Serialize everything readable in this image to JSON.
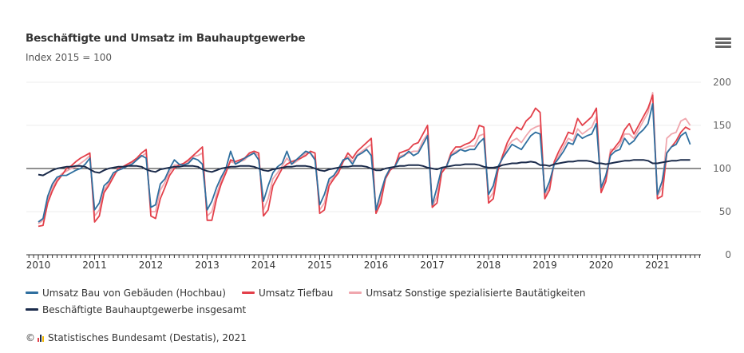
{
  "header": {
    "title": "Beschäftigte und Umsatz im Bauhauptgewerbe",
    "subtitle": "Index 2015 = 100",
    "menu_icon": "hamburger-menu-icon"
  },
  "legend": {
    "items": [
      {
        "label": "Umsatz Bau von Gebäuden (Hochbau)",
        "color": "#2f6f9f"
      },
      {
        "label": "Umsatz Tiefbau",
        "color": "#e3404a"
      },
      {
        "label": "Umsatz Sonstige spezialisierte Bautätigkeiten",
        "color": "#f0a7ae"
      },
      {
        "label": "Beschäftigte Bauhauptgewerbe insgesamt",
        "color": "#1b2b4b"
      }
    ]
  },
  "credits": {
    "copyright": "©",
    "text": "Statistisches Bundesamt (Destatis), 2021"
  },
  "chart_data": {
    "type": "line",
    "title": "Beschäftigte und Umsatz im Bauhauptgewerbe",
    "subtitle": "Index 2015 = 100",
    "xlabel": "",
    "ylabel": "",
    "x_start": "2010-01",
    "frequency": "monthly",
    "x_tick_labels": [
      "2010",
      "2011",
      "2012",
      "2013",
      "2014",
      "2015",
      "2016",
      "2017",
      "2018",
      "2019",
      "2020",
      "2021"
    ],
    "y_tick_labels": [
      "0",
      "50",
      "100",
      "150",
      "200"
    ],
    "ylim": [
      0,
      200
    ],
    "y_axis_side": "right",
    "reference_line": 100,
    "grid": true,
    "legend_position": "bottom-left",
    "series": [
      {
        "name": "Umsatz Bau von Gebäuden (Hochbau)",
        "color": "#2f6f9f",
        "values": [
          38,
          42,
          68,
          82,
          90,
          92,
          92,
          95,
          98,
          100,
          105,
          112,
          52,
          60,
          80,
          85,
          95,
          98,
          100,
          103,
          105,
          110,
          115,
          112,
          55,
          58,
          82,
          88,
          100,
          110,
          105,
          104,
          106,
          112,
          110,
          105,
          52,
          62,
          78,
          90,
          100,
          120,
          105,
          108,
          112,
          115,
          118,
          110,
          62,
          80,
          95,
          102,
          106,
          120,
          105,
          110,
          115,
          120,
          118,
          110,
          58,
          70,
          88,
          92,
          100,
          110,
          112,
          105,
          115,
          118,
          122,
          115,
          52,
          72,
          90,
          100,
          102,
          112,
          115,
          120,
          115,
          118,
          128,
          138,
          58,
          78,
          100,
          102,
          115,
          118,
          122,
          120,
          122,
          122,
          130,
          135,
          70,
          80,
          102,
          112,
          120,
          128,
          125,
          122,
          130,
          138,
          142,
          140,
          72,
          85,
          105,
          112,
          120,
          130,
          128,
          140,
          135,
          138,
          140,
          152,
          78,
          92,
          115,
          120,
          122,
          135,
          128,
          132,
          140,
          145,
          152,
          175,
          70,
          85,
          118,
          125,
          128,
          138,
          142,
          128
        ]
      },
      {
        "name": "Umsatz Tiefbau",
        "color": "#e3404a",
        "values": [
          33,
          34,
          60,
          74,
          85,
          92,
          100,
          103,
          108,
          112,
          115,
          118,
          38,
          45,
          72,
          80,
          90,
          100,
          102,
          105,
          108,
          112,
          118,
          122,
          45,
          42,
          65,
          78,
          92,
          100,
          104,
          106,
          110,
          115,
          120,
          125,
          40,
          40,
          65,
          82,
          95,
          110,
          108,
          110,
          112,
          118,
          120,
          118,
          45,
          52,
          80,
          90,
          100,
          105,
          108,
          110,
          112,
          115,
          120,
          118,
          48,
          52,
          80,
          88,
          95,
          108,
          118,
          112,
          120,
          125,
          130,
          135,
          48,
          60,
          88,
          98,
          102,
          118,
          120,
          122,
          128,
          130,
          140,
          150,
          55,
          60,
          95,
          102,
          118,
          125,
          125,
          128,
          130,
          135,
          150,
          148,
          60,
          65,
          98,
          115,
          130,
          140,
          148,
          145,
          155,
          160,
          170,
          165,
          65,
          75,
          108,
          120,
          130,
          142,
          140,
          158,
          150,
          155,
          160,
          170,
          72,
          85,
          118,
          125,
          132,
          145,
          152,
          140,
          150,
          160,
          170,
          185,
          65,
          68,
          118,
          125,
          132,
          142,
          148,
          145
        ]
      },
      {
        "name": "Umsatz Sonstige spezialisierte Bautätigkeiten",
        "color": "#f0a7ae",
        "values": [
          36,
          40,
          64,
          78,
          88,
          94,
          97,
          100,
          102,
          106,
          110,
          115,
          45,
          52,
          75,
          83,
          92,
          98,
          100,
          103,
          106,
          110,
          114,
          118,
          50,
          50,
          75,
          84,
          96,
          104,
          104,
          105,
          108,
          114,
          115,
          118,
          45,
          50,
          70,
          86,
          97,
          108,
          106,
          108,
          110,
          116,
          118,
          115,
          52,
          65,
          88,
          95,
          103,
          112,
          105,
          108,
          112,
          118,
          118,
          112,
          52,
          60,
          84,
          90,
          97,
          108,
          114,
          108,
          116,
          120,
          124,
          128,
          50,
          65,
          90,
          100,
          102,
          114,
          116,
          118,
          120,
          120,
          132,
          140,
          55,
          68,
          98,
          102,
          116,
          120,
          122,
          124,
          126,
          126,
          138,
          140,
          64,
          72,
          100,
          112,
          125,
          132,
          135,
          130,
          138,
          145,
          148,
          150,
          68,
          80,
          106,
          115,
          125,
          135,
          132,
          146,
          140,
          144,
          148,
          160,
          75,
          88,
          122,
          122,
          128,
          140,
          140,
          135,
          145,
          155,
          165,
          188,
          68,
          78,
          135,
          140,
          142,
          155,
          158,
          150
        ]
      },
      {
        "name": "Beschäftigte Bauhauptgewerbe insgesamt",
        "color": "#1b2b4b",
        "values": [
          93,
          92,
          95,
          98,
          100,
          101,
          102,
          102,
          103,
          103,
          102,
          99,
          96,
          95,
          98,
          100,
          101,
          102,
          102,
          103,
          103,
          103,
          102,
          99,
          97,
          96,
          99,
          100,
          101,
          102,
          102,
          103,
          103,
          103,
          102,
          99,
          97,
          96,
          98,
          100,
          101,
          102,
          102,
          103,
          103,
          103,
          102,
          100,
          98,
          97,
          99,
          100,
          101,
          102,
          102,
          103,
          103,
          103,
          102,
          100,
          98,
          97,
          99,
          100,
          101,
          102,
          102,
          103,
          103,
          103,
          102,
          100,
          98,
          98,
          100,
          101,
          102,
          103,
          103,
          104,
          104,
          104,
          103,
          101,
          100,
          99,
          101,
          102,
          103,
          104,
          104,
          105,
          105,
          105,
          104,
          102,
          101,
          101,
          102,
          104,
          105,
          106,
          106,
          107,
          107,
          108,
          107,
          104,
          104,
          103,
          105,
          106,
          107,
          108,
          108,
          109,
          109,
          109,
          108,
          106,
          106,
          105,
          106,
          107,
          108,
          109,
          109,
          110,
          110,
          110,
          109,
          106,
          106,
          107,
          108,
          109,
          109,
          110,
          110,
          110
        ]
      }
    ]
  }
}
